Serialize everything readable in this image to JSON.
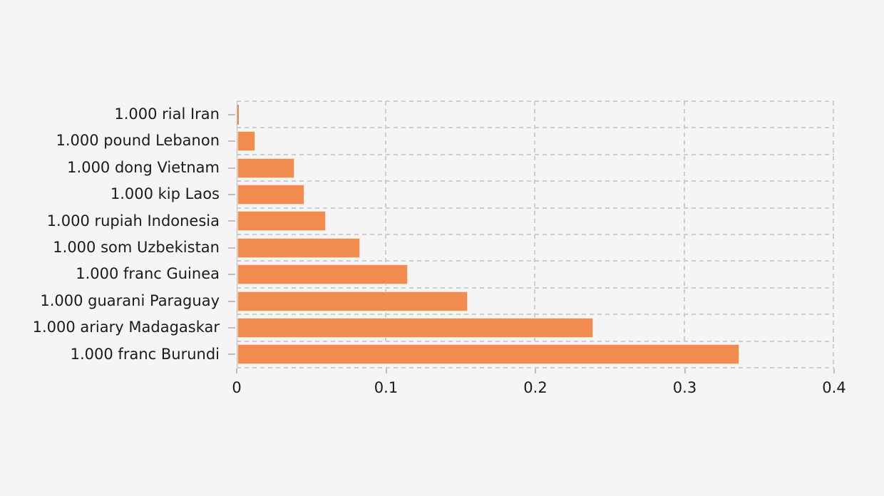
{
  "chart_data": {
    "type": "bar",
    "orientation": "horizontal",
    "title": "",
    "xlabel": "",
    "ylabel": "",
    "categories": [
      "1.000 rial Iran",
      "1.000 pound Lebanon",
      "1.000 dong Vietnam",
      "1.000 kip Laos",
      "1.000 rupiah Indonesia",
      "1.000 som Uzbekistan",
      "1.000 franc Guinea",
      "1.000 guarani Paraguay",
      "1.000 ariary Madagaskar",
      "1.000 franc Burundi"
    ],
    "values": [
      0.001,
      0.012,
      0.038,
      0.045,
      0.059,
      0.082,
      0.114,
      0.154,
      0.238,
      0.336
    ],
    "xlim": [
      0,
      0.4
    ],
    "x_ticks": [
      0,
      0.1,
      0.2,
      0.3,
      0.4
    ],
    "x_tick_labels": [
      "0",
      "0.1",
      "0.2",
      "0.3",
      "0.4"
    ],
    "grid": "dashed, horizontal row separators and vertical ticks, plot framed by dashed grid on top/right/bottom",
    "legend": "none",
    "bar_color": "#f28b4e",
    "bar_edge_color": "#f8ddc4",
    "grid_color": "#cdcdcd",
    "axis_color": "#bdbdbd",
    "text_color": "#1a1a1a",
    "background_color": "#f5f5f5"
  }
}
